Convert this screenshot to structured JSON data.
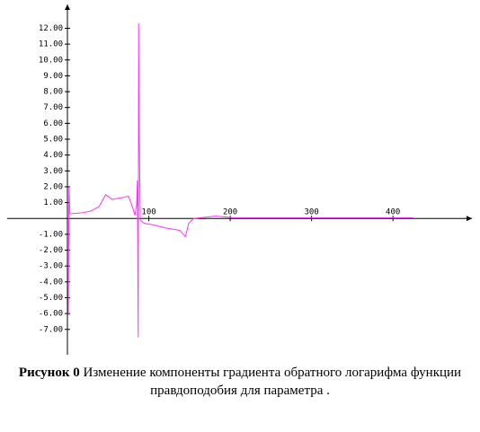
{
  "chart_data": {
    "type": "line",
    "caption_label": "Рисунок 0",
    "caption": "Изменение компоненты градиента обратного логарифма функции правдоподобия для параметра .",
    "series": [
      {
        "color": "#ff33ff",
        "x": [
          1,
          2,
          3,
          17,
          28,
          39,
          47,
          55,
          66,
          75,
          78,
          83,
          85,
          86,
          87,
          87.5,
          88,
          89.5,
          94,
          105,
          121,
          138,
          145,
          149,
          155,
          182,
          204,
          425
        ],
        "values": [
          -6.1,
          2.0,
          0.3,
          0.35,
          0.45,
          0.75,
          1.5,
          1.2,
          1.3,
          1.4,
          1.0,
          0.2,
          0.85,
          2.4,
          -7.5,
          12.3,
          6.3,
          -0.1,
          -0.3,
          -0.4,
          -0.6,
          -0.75,
          -1.15,
          -0.3,
          0,
          0.15,
          0.05,
          0.05
        ]
      }
    ],
    "xlim": [
      -74,
      497
    ],
    "ylim": [
      -8.6,
      13.5
    ],
    "xticks": [
      100,
      200,
      300,
      400
    ],
    "yticks": [
      {
        "value": 12,
        "label": "12.00"
      },
      {
        "value": 11,
        "label": "11.00"
      },
      {
        "value": 10,
        "label": "10.00"
      },
      {
        "value": 9,
        "label": "9.00"
      },
      {
        "value": 8,
        "label": "8.00"
      },
      {
        "value": 7,
        "label": "7.00"
      },
      {
        "value": 6,
        "label": "6.00"
      },
      {
        "value": 5,
        "label": "5.00"
      },
      {
        "value": 4,
        "label": "4.00"
      },
      {
        "value": 3,
        "label": "3.00"
      },
      {
        "value": 2,
        "label": "2.00"
      },
      {
        "value": 1,
        "label": "1.00"
      },
      {
        "value": -1,
        "label": "-1.00"
      },
      {
        "value": -2,
        "label": "-2.00"
      },
      {
        "value": -3,
        "label": "-3.00"
      },
      {
        "value": -4,
        "label": "-4.00"
      },
      {
        "value": -5,
        "label": "-5.00"
      },
      {
        "value": -6,
        "label": "-6.00"
      },
      {
        "value": -7,
        "label": "-7.00"
      }
    ],
    "grid": false
  }
}
